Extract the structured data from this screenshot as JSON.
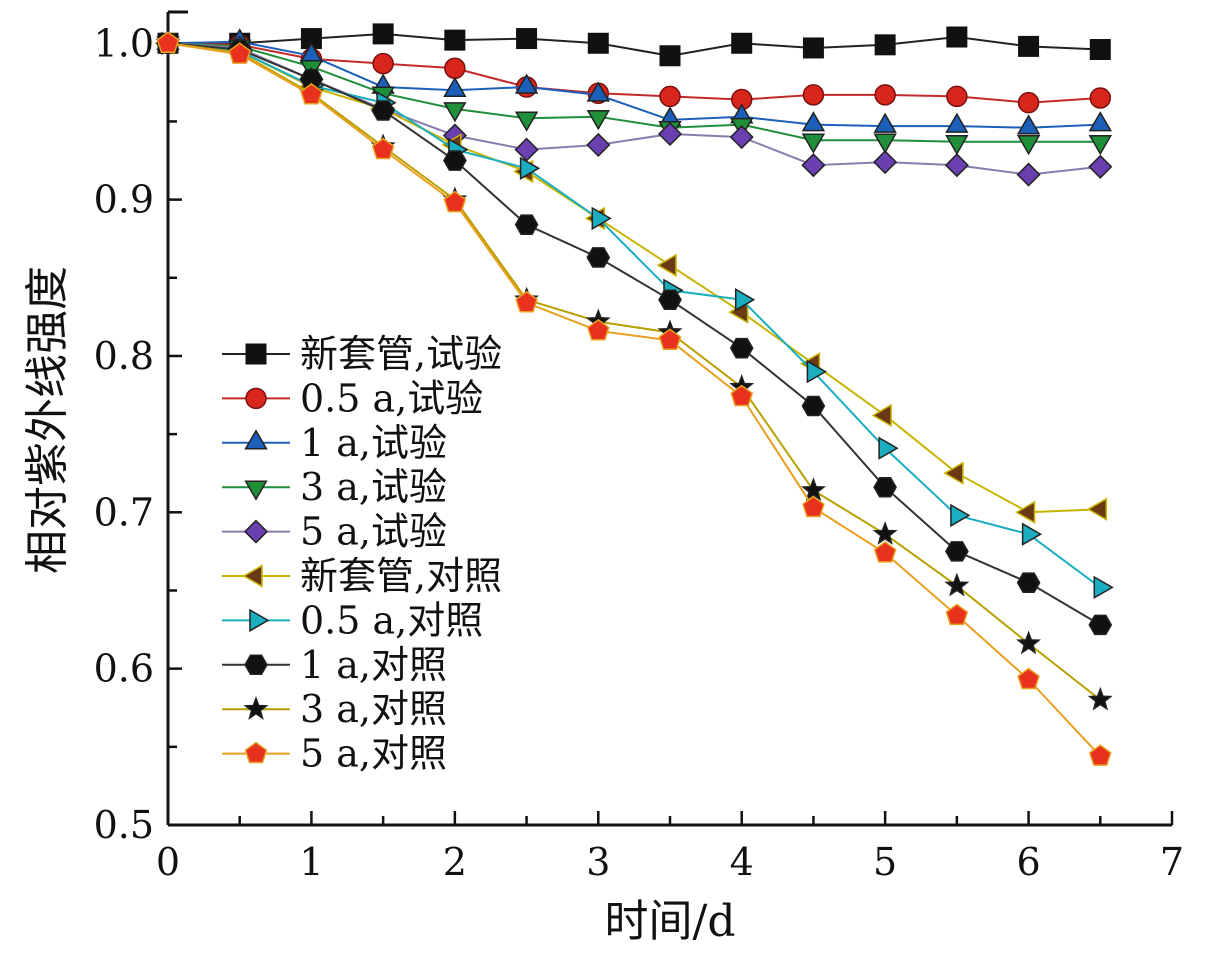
{
  "chart_data": {
    "type": "line",
    "title": "",
    "xlabel": "时间/d",
    "ylabel": "相对紫外线强度",
    "xlim": [
      0,
      7
    ],
    "ylim": [
      0.5,
      1.02
    ],
    "x_ticks": [
      "0",
      "1",
      "2",
      "3",
      "4",
      "5",
      "6",
      "7"
    ],
    "y_ticks": [
      "0.5",
      "0.6",
      "0.7",
      "0.8",
      "0.9",
      "1.0"
    ],
    "grid": false,
    "legend_position": "left-center",
    "x": [
      0,
      0.5,
      1,
      1.5,
      2,
      2.5,
      3,
      3.5,
      4,
      4.5,
      5,
      5.5,
      6,
      6.5
    ],
    "series": [
      {
        "name": "新套管,试验",
        "marker": "square",
        "fill": "#111111",
        "line": "#222222",
        "values": [
          1.0,
          1.0,
          1.003,
          1.006,
          1.002,
          1.003,
          1.0,
          0.992,
          1.0,
          0.997,
          0.999,
          1.004,
          0.998,
          0.996
        ]
      },
      {
        "name": "0.5 a,试验",
        "marker": "circle",
        "fill": "#d9261c",
        "line": "#c22a2a",
        "values": [
          1.0,
          0.999,
          0.99,
          0.987,
          0.984,
          0.972,
          0.968,
          0.966,
          0.964,
          0.967,
          0.967,
          0.966,
          0.962,
          0.965
        ]
      },
      {
        "name": "1 a,试验",
        "marker": "triangle-up",
        "fill": "#1b5fb8",
        "line": "#1b5fb8",
        "values": [
          1.0,
          1.001,
          0.992,
          0.972,
          0.97,
          0.972,
          0.967,
          0.951,
          0.953,
          0.948,
          0.947,
          0.947,
          0.946,
          0.948
        ]
      },
      {
        "name": "3 a,试验",
        "marker": "triangle-down",
        "fill": "#1f8f3a",
        "line": "#1f8f3a",
        "values": [
          1.0,
          0.998,
          0.985,
          0.968,
          0.958,
          0.952,
          0.953,
          0.946,
          0.948,
          0.938,
          0.938,
          0.937,
          0.937,
          0.937
        ]
      },
      {
        "name": "5 a,试验",
        "marker": "diamond",
        "fill": "#6a3fb0",
        "line": "#8a7ab0",
        "values": [
          1.0,
          0.997,
          0.977,
          0.958,
          0.941,
          0.932,
          0.935,
          0.942,
          0.94,
          0.922,
          0.924,
          0.922,
          0.916,
          0.921
        ]
      },
      {
        "name": "新套管,对照",
        "marker": "triangle-left",
        "fill": "#6b3a14",
        "line": "#c8b400",
        "values": [
          1.0,
          0.995,
          0.972,
          0.958,
          0.935,
          0.918,
          0.888,
          0.858,
          0.828,
          0.795,
          0.762,
          0.725,
          0.7,
          0.702
        ]
      },
      {
        "name": "0.5 a,对照",
        "marker": "triangle-right",
        "fill": "#1aaec0",
        "line": "#1aaec0",
        "values": [
          1.0,
          0.995,
          0.973,
          0.962,
          0.932,
          0.92,
          0.888,
          0.842,
          0.836,
          0.79,
          0.741,
          0.698,
          0.686,
          0.652
        ]
      },
      {
        "name": "1 a,对照",
        "marker": "hexagon",
        "fill": "#111111",
        "line": "#333333",
        "values": [
          1.0,
          0.996,
          0.977,
          0.957,
          0.925,
          0.884,
          0.863,
          0.836,
          0.805,
          0.768,
          0.716,
          0.675,
          0.655,
          0.628
        ]
      },
      {
        "name": "3 a,对照",
        "marker": "star",
        "fill": "#111111",
        "line": "#b8a000",
        "values": [
          1.0,
          0.994,
          0.968,
          0.934,
          0.9,
          0.836,
          0.822,
          0.815,
          0.78,
          0.714,
          0.686,
          0.653,
          0.616,
          0.58
        ]
      },
      {
        "name": "5 a,对照",
        "marker": "pentagon",
        "fill": "#e8321e",
        "line": "#e8a020",
        "values": [
          1.0,
          0.993,
          0.967,
          0.932,
          0.898,
          0.834,
          0.816,
          0.81,
          0.774,
          0.703,
          0.674,
          0.634,
          0.593,
          0.544
        ]
      }
    ]
  }
}
